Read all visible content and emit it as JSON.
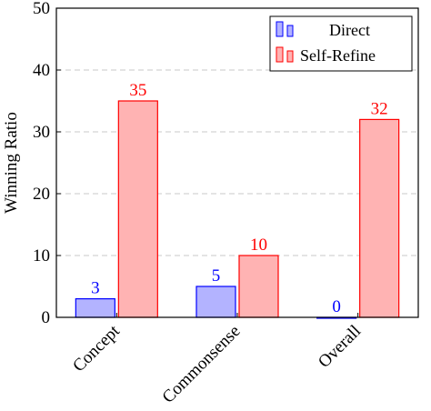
{
  "chart_data": {
    "type": "bar",
    "title": "",
    "xlabel": "",
    "ylabel": "Winning Ratio",
    "ylim": [
      0,
      50
    ],
    "yticks": [
      "0",
      "10",
      "20",
      "30",
      "40",
      "50"
    ],
    "categories": [
      "Concept",
      "Commonsense",
      "Overall"
    ],
    "grid": "horizontal dashed",
    "legend_position": "top-right",
    "series": [
      {
        "name": "Direct",
        "values": [
          3,
          5,
          0
        ],
        "labels": [
          "3",
          "5",
          "0"
        ],
        "fill": "#b3b3ff",
        "stroke": "#0000ff",
        "label_color": "#0000ff"
      },
      {
        "name": "Self-Refine",
        "values": [
          35,
          10,
          32
        ],
        "labels": [
          "35",
          "10",
          "32"
        ],
        "fill": "#ffb3b3",
        "stroke": "#ff0000",
        "label_color": "#ff0000"
      }
    ]
  }
}
